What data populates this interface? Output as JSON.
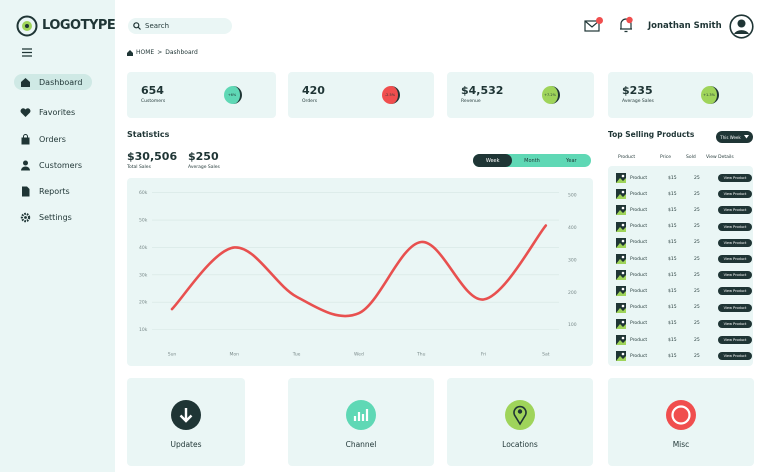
{
  "logo": "LOGOTYPE",
  "nav": [
    "Dashboard",
    "Favorites",
    "Orders",
    "Customers",
    "Reports",
    "Settings"
  ],
  "search": "Search",
  "user": "Jonathan Smith",
  "breadcrumb": {
    "home": "HOME",
    "separator": ">",
    "current": "Dashboard"
  },
  "stats": [
    {
      "value": "654",
      "label": "Customers",
      "change": "+6%"
    },
    {
      "value": "420",
      "label": "Orders",
      "change": "-2.5%"
    },
    {
      "value": "$4,532",
      "label": "Revenue",
      "change": "+7.2%"
    },
    {
      "value": "$235",
      "label": "Average Sales",
      "change": "+1.3%"
    }
  ],
  "statistics": {
    "title": "Statistics",
    "total": {
      "value": "$30,506",
      "label": "Total Sales"
    },
    "average": {
      "value": "$250",
      "label": "Average Sales"
    },
    "periods": [
      "Week",
      "Month",
      "Year"
    ]
  },
  "chart_data": {
    "type": "line",
    "categories": [
      "Sun",
      "Mon",
      "Tue",
      "Wed",
      "Thu",
      "Fri",
      "Sat"
    ],
    "series": [
      {
        "color": "#e8504f",
        "values": [
          17500,
          40000,
          22000,
          16000,
          42000,
          21000,
          48000
        ]
      }
    ],
    "ylim": [
      0,
      65000
    ],
    "yticks": [
      {
        "value": 10000,
        "label": "10k"
      },
      {
        "value": 20000,
        "label": "20k"
      },
      {
        "value": 30000,
        "label": "30k"
      },
      {
        "value": 40000,
        "label": "40k"
      },
      {
        "value": 50000,
        "label": "50k"
      },
      {
        "value": 60000,
        "label": "60k"
      }
    ],
    "y2lim": [
      0,
      550
    ],
    "y2ticks": [
      100,
      200,
      300,
      400,
      500
    ],
    "grid": true
  },
  "products": {
    "title": "Top Selling Products",
    "filter": "This Week",
    "columns": [
      "Product",
      "Price",
      "Sold",
      "View Details"
    ],
    "rows": [
      [
        "Product",
        "$15",
        "25",
        "View Product"
      ],
      [
        "Product",
        "$15",
        "25",
        "View Product"
      ],
      [
        "Product",
        "$15",
        "25",
        "View Product"
      ],
      [
        "Product",
        "$15",
        "25",
        "View Product"
      ],
      [
        "Product",
        "$15",
        "25",
        "View Product"
      ],
      [
        "Product",
        "$15",
        "25",
        "View Product"
      ],
      [
        "Product",
        "$15",
        "25",
        "View Product"
      ],
      [
        "Product",
        "$15",
        "25",
        "View Product"
      ],
      [
        "Product",
        "$15",
        "25",
        "View Product"
      ],
      [
        "Product",
        "$15",
        "25",
        "View Product"
      ],
      [
        "Product",
        "$15",
        "25",
        "View Product"
      ],
      [
        "Product",
        "$15",
        "25",
        "View Product"
      ]
    ]
  },
  "tiles": [
    "Updates",
    "Channel",
    "Locations",
    "Misc"
  ]
}
